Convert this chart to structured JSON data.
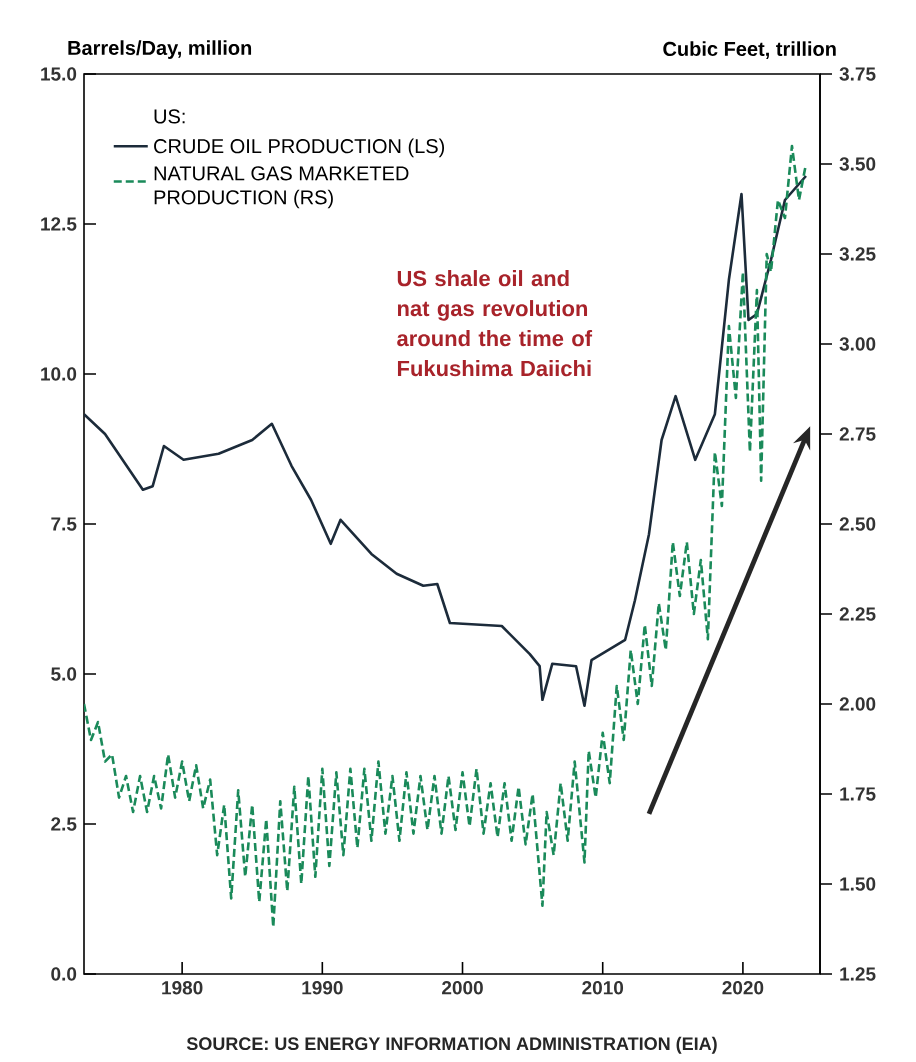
{
  "chart_data": {
    "type": "line",
    "xlabel": null,
    "ylabel": "Barrels/Day, million",
    "y2label": "Cubic Feet, trillion",
    "legend_title": "US:",
    "legend": "top left",
    "marker": "none",
    "xlim": [
      1973,
      2025.5
    ],
    "xticks": [
      1980,
      1990,
      2000,
      2010,
      2020
    ],
    "ylim": [
      0,
      15
    ],
    "yticks": [
      {
        "value": 0,
        "label": "0.0"
      },
      {
        "value": 2.5,
        "label": "2.5"
      },
      {
        "value": 5,
        "label": "5.0"
      },
      {
        "value": 7.5,
        "label": "7.5"
      },
      {
        "value": 10,
        "label": "10.0"
      },
      {
        "value": 12.5,
        "label": "12.5"
      },
      {
        "value": 15,
        "label": "15.0"
      }
    ],
    "y2lim": [
      1.25,
      3.75
    ],
    "y2ticks": [
      1.25,
      {
        "value": 1.5,
        "label": "1.50"
      },
      1.75,
      {
        "value": 2,
        "label": "2.00"
      },
      2.25,
      {
        "value": 2.5,
        "label": "2.50"
      },
      2.75,
      {
        "value": 3,
        "label": "3.00"
      },
      3.25,
      {
        "value": 3.5,
        "label": "3.50"
      },
      3.75
    ],
    "annotations": [
      "US shale oil and nat gas revolution around the time of Fukushima Daiichi",
      "SOURCE: US ENERGY INFORMATION ADMINISTRATION (EIA)"
    ],
    "series": [
      {
        "name": "CRUDE OIL PRODUCTION (LS)",
        "color": "#1c2b3a",
        "line_style": "solid",
        "axis": "y",
        "x": [
          1973.0,
          1974.5,
          1977.2,
          1977.9,
          1978.7,
          1980.1,
          1982.6,
          1985.0,
          1986.4,
          1987.8,
          1989.2,
          1990.6,
          1991.3,
          1993.5,
          1995.3,
          1997.2,
          1998.2,
          1999.1,
          2002.8,
          2004.8,
          2005.5,
          2005.7,
          2006.4,
          2008.1,
          2008.7,
          2009.2,
          2011.6,
          2012.3,
          2013.3,
          2014.2,
          2015.2,
          2016.6,
          2018.0,
          2019.0,
          2019.9,
          2020.4,
          2021.0,
          2022.0,
          2023.0,
          2024.5
        ],
        "values": [
          9.33,
          9.0,
          8.07,
          8.13,
          8.8,
          8.57,
          8.67,
          8.9,
          9.17,
          8.47,
          7.9,
          7.17,
          7.57,
          7.0,
          6.67,
          6.47,
          6.5,
          5.85,
          5.8,
          5.33,
          5.13,
          4.57,
          5.17,
          5.13,
          4.47,
          5.23,
          5.57,
          6.23,
          7.33,
          8.9,
          9.63,
          8.57,
          9.33,
          11.57,
          13.0,
          10.9,
          11.0,
          11.9,
          12.9,
          13.3
        ]
      },
      {
        "name": "NATURAL GAS MARKETED PRODUCTION (RS)",
        "color": "#1a8a5a",
        "line_style": "dashed",
        "axis": "y2",
        "x": [
          1973,
          1973.5,
          1974,
          1974.5,
          1975,
          1975.5,
          1976,
          1976.5,
          1977,
          1977.5,
          1978,
          1978.5,
          1979,
          1979.5,
          1980,
          1980.5,
          1981,
          1981.5,
          1982,
          1982.5,
          1983,
          1983.5,
          1984,
          1984.5,
          1985,
          1985.5,
          1986,
          1986.5,
          1987,
          1987.5,
          1988,
          1988.5,
          1989,
          1989.5,
          1990,
          1990.5,
          1991,
          1991.5,
          1992,
          1992.5,
          1993,
          1993.5,
          1994,
          1994.5,
          1995,
          1995.5,
          1996,
          1996.5,
          1997,
          1997.5,
          1998,
          1998.5,
          1999,
          1999.5,
          2000,
          2000.5,
          2001,
          2001.5,
          2002,
          2002.5,
          2003,
          2003.5,
          2004,
          2004.5,
          2005,
          2005.7,
          2006,
          2006.5,
          2007,
          2007.5,
          2008,
          2008.7,
          2009,
          2009.5,
          2010,
          2010.5,
          2011,
          2011.5,
          2012,
          2012.5,
          2013,
          2013.5,
          2014,
          2014.5,
          2015,
          2015.5,
          2016,
          2016.5,
          2017,
          2017.5,
          2018,
          2018.5,
          2019,
          2019.5,
          2020,
          2020.5,
          2021,
          2021.3,
          2021.7,
          2022,
          2022.5,
          2023,
          2023.5,
          2024,
          2024.5
        ],
        "values": [
          2.0,
          1.9,
          1.95,
          1.84,
          1.86,
          1.74,
          1.8,
          1.7,
          1.8,
          1.7,
          1.8,
          1.71,
          1.86,
          1.74,
          1.84,
          1.73,
          1.83,
          1.71,
          1.79,
          1.58,
          1.72,
          1.46,
          1.76,
          1.52,
          1.72,
          1.45,
          1.68,
          1.38,
          1.73,
          1.48,
          1.77,
          1.5,
          1.8,
          1.52,
          1.82,
          1.55,
          1.81,
          1.58,
          1.82,
          1.6,
          1.82,
          1.62,
          1.84,
          1.64,
          1.8,
          1.62,
          1.81,
          1.64,
          1.8,
          1.65,
          1.8,
          1.64,
          1.8,
          1.65,
          1.81,
          1.66,
          1.82,
          1.64,
          1.78,
          1.63,
          1.78,
          1.62,
          1.77,
          1.61,
          1.75,
          1.44,
          1.7,
          1.58,
          1.78,
          1.62,
          1.84,
          1.56,
          1.87,
          1.74,
          1.92,
          1.78,
          2.05,
          1.9,
          2.15,
          2.0,
          2.22,
          2.05,
          2.28,
          2.15,
          2.45,
          2.3,
          2.45,
          2.25,
          2.4,
          2.18,
          2.7,
          2.55,
          3.05,
          2.85,
          3.2,
          2.7,
          3.15,
          2.62,
          3.25,
          3.2,
          3.4,
          3.35,
          3.55,
          3.4,
          3.5
        ]
      }
    ]
  }
}
